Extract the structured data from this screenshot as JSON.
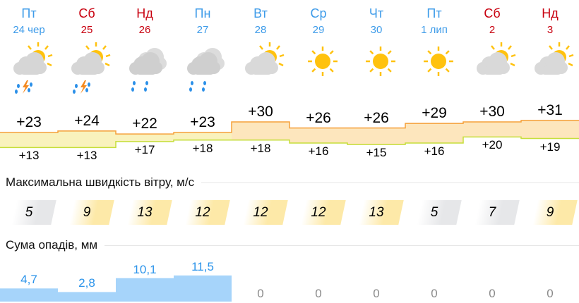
{
  "days": [
    {
      "name": "Пт",
      "date": "24 чер",
      "weekend": false,
      "icon": "cloud-sun-rain-thunder-icon",
      "tmax": "+23",
      "tmin": "+13",
      "max": 23,
      "min": 13,
      "wind": "5",
      "wind_level": "low",
      "precip": "4,7",
      "precip_mm": 4.7
    },
    {
      "name": "Сб",
      "date": "25",
      "weekend": true,
      "icon": "cloud-sun-rain-thunder-icon",
      "tmax": "+24",
      "tmin": "+13",
      "max": 24,
      "min": 13,
      "wind": "9",
      "wind_level": "mid",
      "precip": "2,8",
      "precip_mm": 2.8
    },
    {
      "name": "Нд",
      "date": "26",
      "weekend": true,
      "icon": "cloud-rain-icon",
      "tmax": "+22",
      "tmin": "+17",
      "max": 22,
      "min": 17,
      "wind": "13",
      "wind_level": "mid",
      "precip": "10,1",
      "precip_mm": 10.1
    },
    {
      "name": "Пн",
      "date": "27",
      "weekend": false,
      "icon": "cloud-rain-icon",
      "tmax": "+23",
      "tmin": "+18",
      "max": 23,
      "min": 18,
      "wind": "12",
      "wind_level": "mid",
      "precip": "11,5",
      "precip_mm": 11.5
    },
    {
      "name": "Вт",
      "date": "28",
      "weekend": false,
      "icon": "cloud-sun-icon",
      "tmax": "+30",
      "tmin": "+18",
      "max": 30,
      "min": 18,
      "wind": "12",
      "wind_level": "mid",
      "precip": "0",
      "precip_mm": 0
    },
    {
      "name": "Ср",
      "date": "29",
      "weekend": false,
      "icon": "sun-icon",
      "tmax": "+26",
      "tmin": "+16",
      "max": 26,
      "min": 16,
      "wind": "12",
      "wind_level": "mid",
      "precip": "0",
      "precip_mm": 0
    },
    {
      "name": "Чт",
      "date": "30",
      "weekend": false,
      "icon": "sun-icon",
      "tmax": "+26",
      "tmin": "+15",
      "max": 26,
      "min": 15,
      "wind": "13",
      "wind_level": "mid",
      "precip": "0",
      "precip_mm": 0
    },
    {
      "name": "Пт",
      "date": "1 лип",
      "weekend": false,
      "icon": "sun-icon",
      "tmax": "+29",
      "tmin": "+16",
      "max": 29,
      "min": 16,
      "wind": "5",
      "wind_level": "low",
      "precip": "0",
      "precip_mm": 0
    },
    {
      "name": "Сб",
      "date": "2",
      "weekend": true,
      "icon": "cloud-sun-icon",
      "tmax": "+30",
      "tmin": "+20",
      "max": 30,
      "min": 20,
      "wind": "7",
      "wind_level": "low",
      "precip": "0",
      "precip_mm": 0
    },
    {
      "name": "Нд",
      "date": "3",
      "weekend": true,
      "icon": "cloud-sun-icon",
      "tmax": "+31",
      "tmin": "+19",
      "max": 31,
      "min": 19,
      "wind": "9",
      "wind_level": "mid",
      "precip": "0",
      "precip_mm": 0
    }
  ],
  "sections": {
    "wind_title": "Максимальна швидкість вітру, м/с",
    "precip_title": "Сума опадів, мм"
  },
  "colors": {
    "weekday": "#3d9be9",
    "weekend": "#c8000f",
    "warm_fill": "#fde6bd",
    "mild_fill": "#f9f2bd",
    "max_line": "#f5a03a",
    "min_line": "#c6de3a",
    "wind_low": "#e6e7e9",
    "wind_mid": "#fde9a8",
    "precip": "#a6d4fa"
  }
}
